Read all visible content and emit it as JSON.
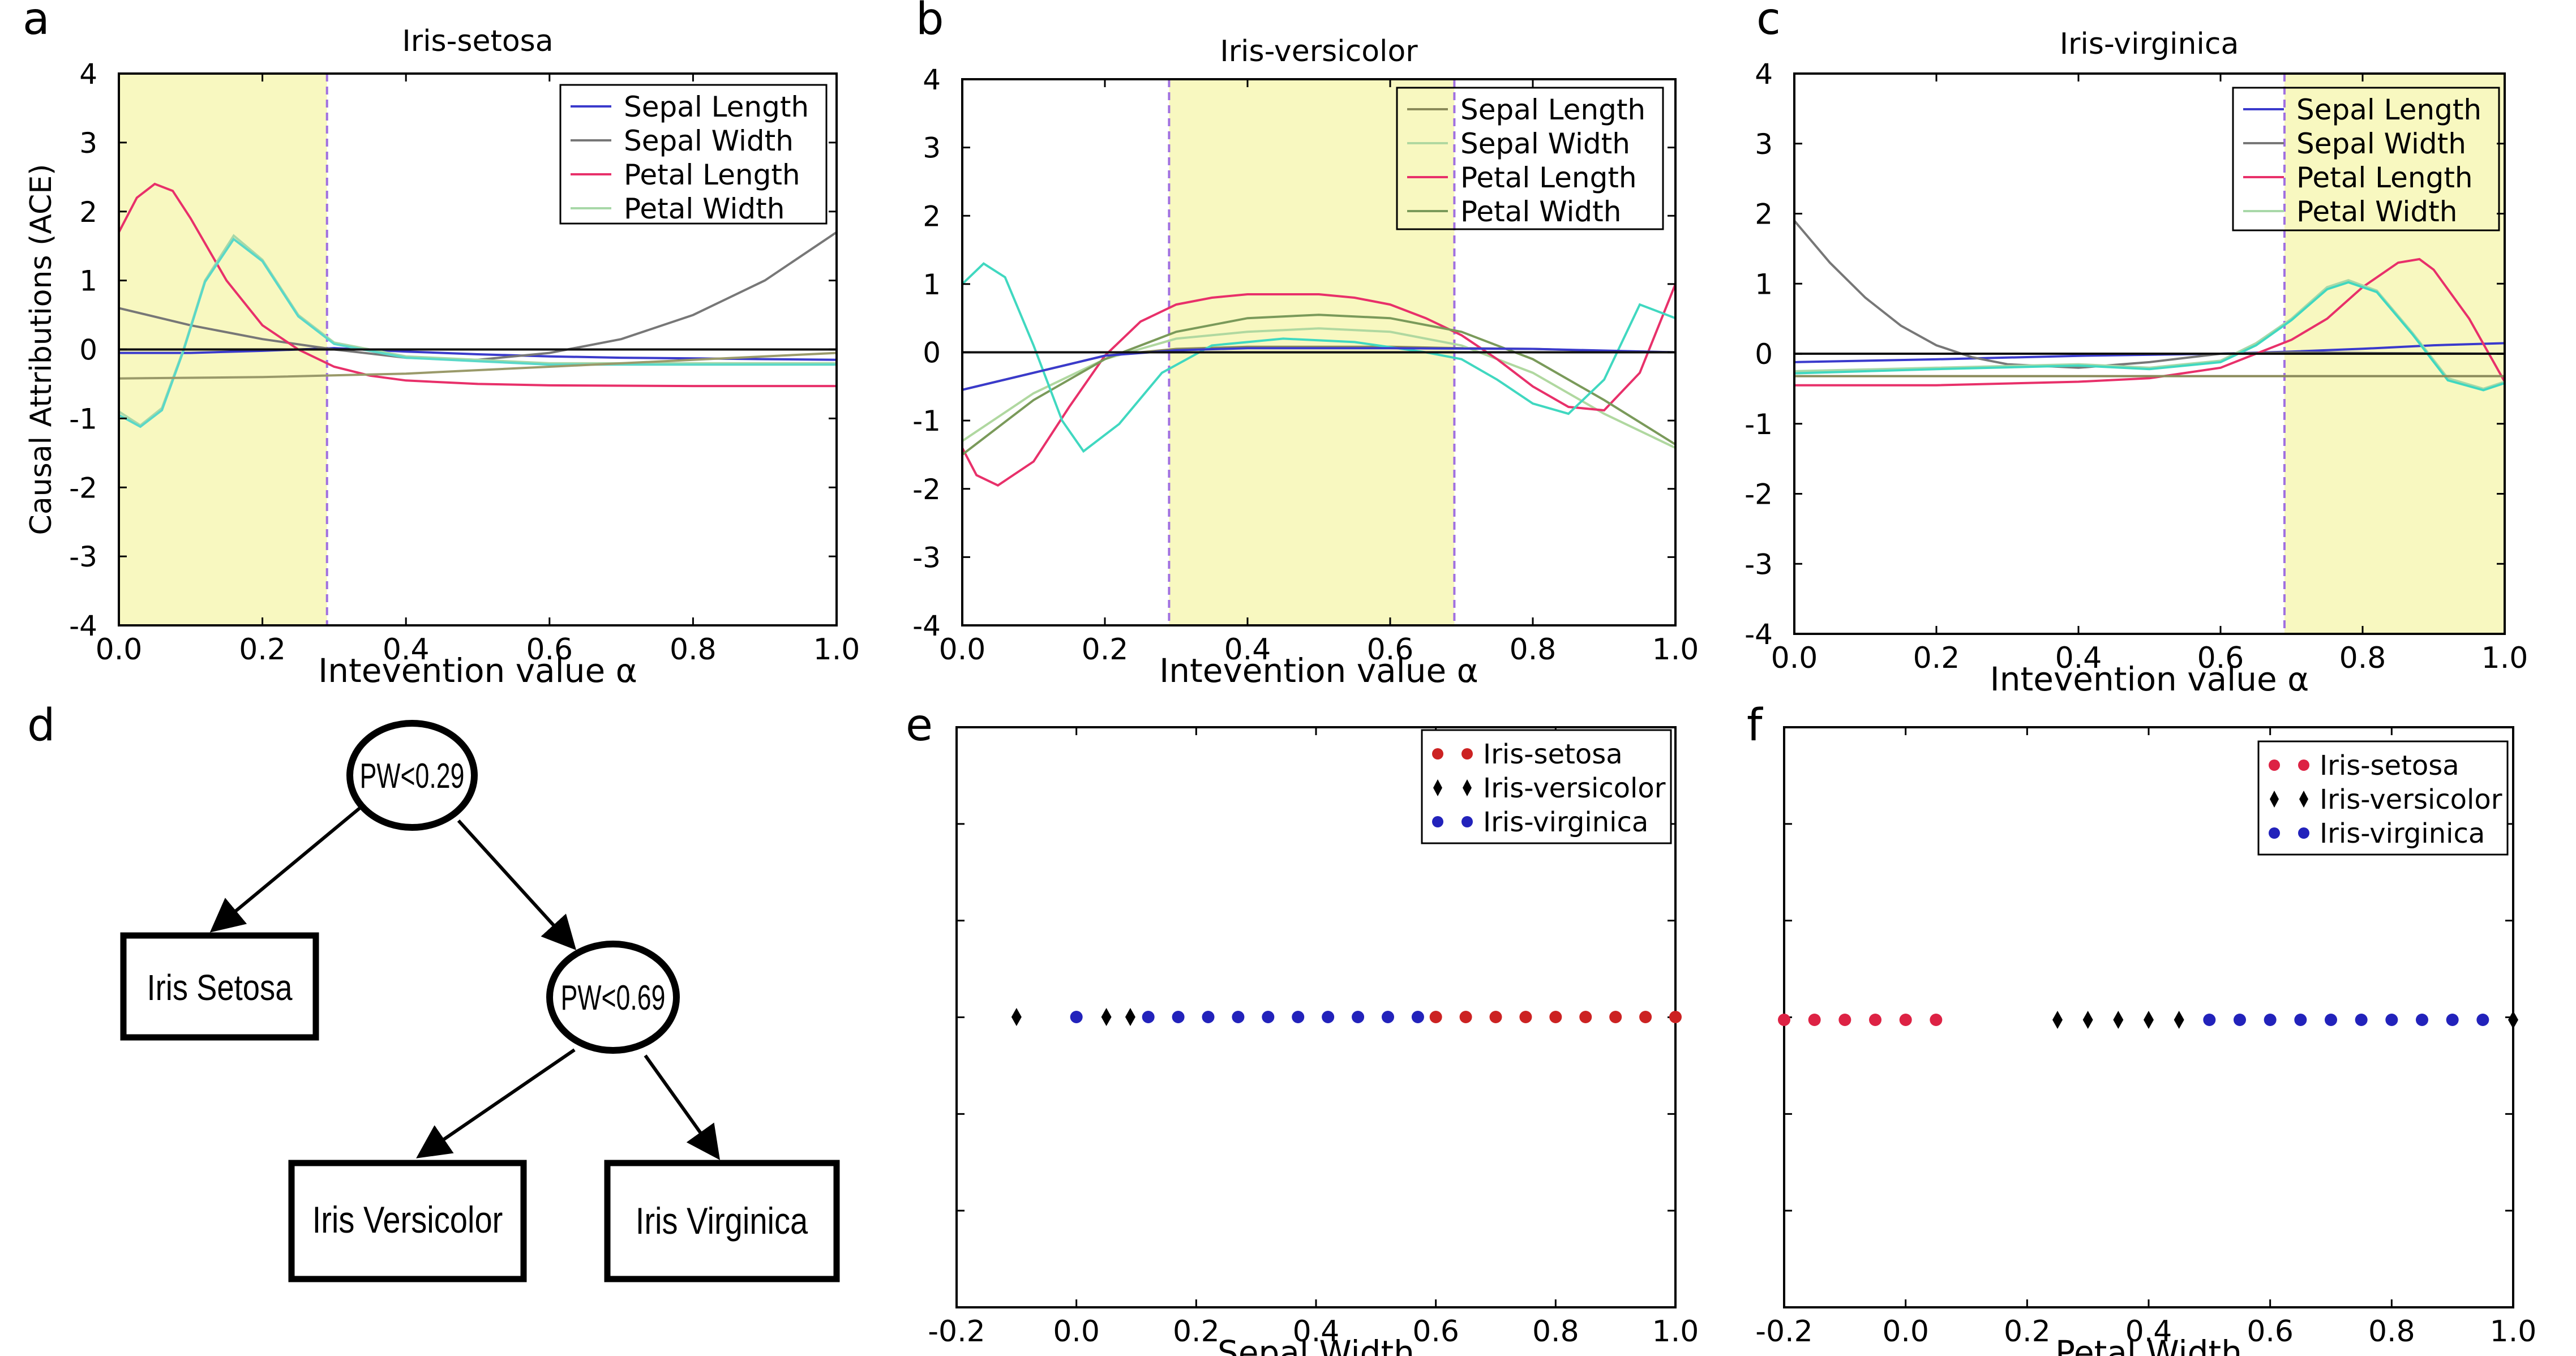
{
  "chart_data": [
    {
      "panel": "a",
      "type": "line",
      "title": "Iris-setosa",
      "xlabel": "Intevention value α",
      "ylabel": "Causal Attributions (ACE)",
      "xlim": [
        0,
        1
      ],
      "ylim": [
        -4,
        4
      ],
      "xticks": [
        "0.0",
        "0.2",
        "0.4",
        "0.6",
        "0.8",
        "1.0"
      ],
      "yticks": [
        "4",
        "3",
        "2",
        "1",
        "0",
        "-1",
        "-2",
        "-3",
        "-4"
      ],
      "shade": [
        0,
        0.29
      ],
      "shade_color": "#f8f8c0",
      "grid": false,
      "legend_position": "top-right",
      "series": [
        {
          "name": "Sepal Length",
          "color": "#3a3acc",
          "x": [
            0,
            0.1,
            0.2,
            0.3,
            0.4,
            0.5,
            0.6,
            0.7,
            0.8,
            0.9,
            1.0
          ],
          "y": [
            -0.05,
            -0.05,
            -0.02,
            0.02,
            -0.03,
            -0.07,
            -0.1,
            -0.12,
            -0.13,
            -0.14,
            -0.15
          ]
        },
        {
          "name": "Sepal Width",
          "color": "#777777",
          "x": [
            0,
            0.1,
            0.2,
            0.3,
            0.4,
            0.5,
            0.6,
            0.7,
            0.8,
            0.9,
            1.0
          ],
          "y": [
            0.6,
            0.35,
            0.15,
            0,
            -0.12,
            -0.15,
            -0.05,
            0.15,
            0.5,
            1.0,
            1.7
          ]
        },
        {
          "name": "Petal Length",
          "color": "#e8306a",
          "x": [
            0,
            0.025,
            0.05,
            0.075,
            0.1,
            0.15,
            0.2,
            0.25,
            0.3,
            0.35,
            0.4,
            0.5,
            0.6,
            0.8,
            1.0
          ],
          "y": [
            1.7,
            2.2,
            2.4,
            2.3,
            1.9,
            1.0,
            0.35,
            0,
            -0.25,
            -0.38,
            -0.45,
            -0.5,
            -0.52,
            -0.53,
            -0.53
          ]
        },
        {
          "name": "Petal Width",
          "color": "#a8d8a8",
          "x": [
            0,
            0.03,
            0.06,
            0.09,
            0.12,
            0.16,
            0.2,
            0.25,
            0.3,
            0.4,
            0.5,
            0.6,
            0.8,
            1.0
          ],
          "y": [
            -0.9,
            -1.1,
            -0.85,
            0,
            1.0,
            1.65,
            1.3,
            0.5,
            0.1,
            -0.1,
            -0.15,
            -0.2,
            -0.2,
            -0.2
          ]
        },
        {
          "name": "",
          "color": "#5ad8c8",
          "x": [
            0,
            0.03,
            0.06,
            0.09,
            0.12,
            0.16,
            0.2,
            0.25,
            0.3,
            0.4,
            0.5,
            0.6,
            0.8,
            1.0
          ],
          "y": [
            -0.95,
            -1.12,
            -0.88,
            -0.02,
            0.98,
            1.6,
            1.28,
            0.48,
            0.08,
            -0.12,
            -0.17,
            -0.22,
            -0.22,
            -0.22
          ]
        },
        {
          "name": "",
          "color": "#9a9a6a",
          "x": [
            0,
            0.2,
            0.4,
            0.6,
            0.8,
            1.0
          ],
          "y": [
            -0.42,
            -0.4,
            -0.35,
            -0.25,
            -0.15,
            -0.05
          ]
        },
        {
          "name": "",
          "color": "#111111",
          "x": [
            0,
            1.0
          ],
          "y": [
            0,
            0
          ]
        }
      ]
    },
    {
      "panel": "b",
      "type": "line",
      "title": "Iris-versicolor",
      "xlabel": "Intevention value α",
      "ylabel": "",
      "xlim": [
        0,
        1
      ],
      "ylim": [
        -4,
        4
      ],
      "xticks": [
        "0.0",
        "0.2",
        "0.4",
        "0.6",
        "0.8",
        "1.0"
      ],
      "yticks": [
        "4",
        "3",
        "2",
        "1",
        "0",
        "-1",
        "-2",
        "-3",
        "-4"
      ],
      "shade": [
        0.29,
        0.69
      ],
      "shade_color": "#f8f8c0",
      "grid": false,
      "legend_position": "top-right",
      "series": [
        {
          "name": "Sepal Length",
          "color": "#8a8a5a",
          "x": [
            0,
            0.1,
            0.2,
            0.3,
            0.4,
            0.5,
            0.6,
            0.7,
            0.8,
            0.9,
            1.0
          ],
          "y": [
            -0.55,
            -0.3,
            -0.05,
            0.05,
            0.08,
            0.08,
            0.08,
            0.06,
            0.05,
            0.02,
            0
          ]
        },
        {
          "name": "Sepal Width",
          "color": "#b0d8a0",
          "x": [
            0,
            0.1,
            0.2,
            0.3,
            0.4,
            0.5,
            0.6,
            0.7,
            0.8,
            0.9,
            1.0
          ],
          "y": [
            -1.3,
            -0.6,
            -0.1,
            0.2,
            0.3,
            0.35,
            0.3,
            0.1,
            -0.3,
            -0.9,
            -1.4
          ]
        },
        {
          "name": "Petal Length",
          "color": "#e8306a",
          "x": [
            0,
            0.02,
            0.05,
            0.1,
            0.15,
            0.2,
            0.25,
            0.3,
            0.35,
            0.4,
            0.45,
            0.5,
            0.55,
            0.6,
            0.65,
            0.7,
            0.75,
            0.8,
            0.85,
            0.9,
            0.95,
            1.0
          ],
          "y": [
            -1.4,
            -1.8,
            -1.95,
            -1.6,
            -0.8,
            -0.05,
            0.45,
            0.7,
            0.8,
            0.85,
            0.85,
            0.85,
            0.8,
            0.7,
            0.5,
            0.25,
            -0.1,
            -0.5,
            -0.8,
            -0.85,
            -0.3,
            1.0
          ]
        },
        {
          "name": "Petal Width",
          "color": "#7a9a5a",
          "x": [
            0,
            0.1,
            0.2,
            0.3,
            0.4,
            0.5,
            0.6,
            0.7,
            0.8,
            0.9,
            1.0
          ],
          "y": [
            -1.5,
            -0.7,
            -0.1,
            0.3,
            0.5,
            0.55,
            0.5,
            0.3,
            -0.1,
            -0.7,
            -1.35
          ]
        },
        {
          "name": "",
          "color": "#40d8c0",
          "x": [
            0,
            0.03,
            0.06,
            0.1,
            0.14,
            0.17,
            0.22,
            0.28,
            0.35,
            0.45,
            0.55,
            0.65,
            0.7,
            0.75,
            0.8,
            0.85,
            0.9,
            0.95,
            1.0
          ],
          "y": [
            1.0,
            1.3,
            1.1,
            0.1,
            -1.0,
            -1.45,
            -1.05,
            -0.3,
            0.1,
            0.2,
            0.15,
            0,
            -0.1,
            -0.4,
            -0.75,
            -0.9,
            -0.4,
            0.7,
            0.5
          ]
        },
        {
          "name": "",
          "color": "#3a3acc",
          "x": [
            0,
            0.1,
            0.2,
            0.3,
            0.4,
            0.6,
            0.8,
            1.0
          ],
          "y": [
            -0.55,
            -0.3,
            -0.05,
            0.03,
            0.06,
            0.06,
            0.05,
            0
          ]
        },
        {
          "name": "",
          "color": "#111111",
          "x": [
            0,
            1.0
          ],
          "y": [
            0,
            0
          ]
        }
      ]
    },
    {
      "panel": "c",
      "type": "line",
      "title": "Iris-virginica",
      "xlabel": "Intevention value α",
      "ylabel": "",
      "xlim": [
        0,
        1
      ],
      "ylim": [
        -4,
        4
      ],
      "xticks": [
        "0.0",
        "0.2",
        "0.4",
        "0.6",
        "0.8",
        "1.0"
      ],
      "yticks": [
        "4",
        "3",
        "2",
        "1",
        "0",
        "-1",
        "-2",
        "-3",
        "-4"
      ],
      "shade": [
        0.69,
        1.0
      ],
      "shade_color": "#f8f8c0",
      "grid": false,
      "legend_position": "top-right",
      "series": [
        {
          "name": "Sepal Length",
          "color": "#3a3acc",
          "x": [
            0,
            0.2,
            0.4,
            0.6,
            0.7,
            0.8,
            0.9,
            1.0
          ],
          "y": [
            -0.12,
            -0.08,
            -0.03,
            0,
            0.03,
            0.07,
            0.12,
            0.15
          ]
        },
        {
          "name": "Sepal Width",
          "color": "#777777",
          "x": [
            0,
            0.05,
            0.1,
            0.15,
            0.2,
            0.25,
            0.3,
            0.4,
            0.5,
            0.6,
            0.7,
            0.8,
            1.0
          ],
          "y": [
            1.9,
            1.3,
            0.8,
            0.4,
            0.12,
            -0.05,
            -0.15,
            -0.2,
            -0.12,
            0,
            0.02,
            0.01,
            0
          ]
        },
        {
          "name": "Petal Length",
          "color": "#e8306a",
          "x": [
            0,
            0.2,
            0.4,
            0.5,
            0.6,
            0.65,
            0.7,
            0.75,
            0.8,
            0.85,
            0.88,
            0.9,
            0.95,
            1.0
          ],
          "y": [
            -0.45,
            -0.45,
            -0.4,
            -0.35,
            -0.2,
            0,
            0.2,
            0.5,
            0.95,
            1.3,
            1.35,
            1.2,
            0.5,
            -0.4
          ]
        },
        {
          "name": "Petal Width",
          "color": "#a8d8a8",
          "x": [
            0,
            0.2,
            0.4,
            0.5,
            0.6,
            0.65,
            0.7,
            0.75,
            0.78,
            0.82,
            0.87,
            0.92,
            0.97,
            1.0
          ],
          "y": [
            -0.25,
            -0.2,
            -0.15,
            -0.2,
            -0.1,
            0.15,
            0.5,
            0.95,
            1.05,
            0.9,
            0.3,
            -0.35,
            -0.5,
            -0.4
          ]
        },
        {
          "name": "",
          "color": "#40d8c0",
          "x": [
            0,
            0.2,
            0.4,
            0.5,
            0.6,
            0.65,
            0.7,
            0.75,
            0.78,
            0.82,
            0.87,
            0.92,
            0.97,
            1.0
          ],
          "y": [
            -0.28,
            -0.22,
            -0.17,
            -0.22,
            -0.12,
            0.12,
            0.48,
            0.92,
            1.02,
            0.88,
            0.28,
            -0.38,
            -0.52,
            -0.42
          ]
        },
        {
          "name": "",
          "color": "#8a8a5a",
          "x": [
            0,
            1.0
          ],
          "y": [
            -0.32,
            -0.32
          ]
        },
        {
          "name": "",
          "color": "#111111",
          "x": [
            0,
            1.0
          ],
          "y": [
            0,
            0
          ]
        }
      ]
    },
    {
      "panel": "e",
      "type": "scatter",
      "title": "",
      "xlabel": "Sepal Width",
      "ylabel": "",
      "xlim": [
        -0.2,
        1.0
      ],
      "xticks": [
        "-0.2",
        "0.0",
        "0.2",
        "0.4",
        "0.6",
        "0.8",
        "1.0"
      ],
      "grid": false,
      "legend_position": "top-right",
      "series": [
        {
          "name": "Iris-setosa",
          "color": "#cc2222",
          "marker": "circle",
          "x": [
            0.6,
            0.65,
            0.7,
            0.75,
            0.8,
            0.85,
            0.9,
            0.95,
            1.0
          ]
        },
        {
          "name": "Iris-versicolor",
          "color": "#000000",
          "marker": "diamond",
          "x": [
            -0.1,
            0.05,
            0.09
          ]
        },
        {
          "name": "Iris-virginica",
          "color": "#2222bb",
          "marker": "circle",
          "x": [
            0.0,
            0.12,
            0.17,
            0.22,
            0.27,
            0.32,
            0.37,
            0.42,
            0.47,
            0.52,
            0.57
          ]
        }
      ]
    },
    {
      "panel": "f",
      "type": "scatter",
      "title": "",
      "xlabel": "Petal Width",
      "ylabel": "",
      "xlim": [
        -0.2,
        1.0
      ],
      "xticks": [
        "-0.2",
        "0.0",
        "0.2",
        "0.4",
        "0.6",
        "0.8",
        "1.0"
      ],
      "grid": false,
      "legend_position": "top-right",
      "series": [
        {
          "name": "Iris-setosa",
          "color": "#dd2244",
          "marker": "circle",
          "x": [
            -0.2,
            -0.15,
            -0.1,
            -0.05,
            0.0,
            0.05
          ]
        },
        {
          "name": "Iris-versicolor",
          "color": "#000000",
          "marker": "diamond",
          "x": [
            0.25,
            0.3,
            0.35,
            0.4,
            0.45,
            1.0
          ]
        },
        {
          "name": "Iris-virginica",
          "color": "#2222bb",
          "marker": "circle",
          "x": [
            0.5,
            0.55,
            0.6,
            0.65,
            0.7,
            0.75,
            0.8,
            0.85,
            0.9,
            0.95
          ]
        }
      ]
    }
  ],
  "panel_letters": [
    "a",
    "b",
    "c",
    "d",
    "e",
    "f"
  ],
  "tree": {
    "root": "PW<0.29",
    "inner": "PW<0.69",
    "leaves": [
      "Iris Setosa",
      "Iris Versicolor",
      "Iris Virginica"
    ]
  }
}
